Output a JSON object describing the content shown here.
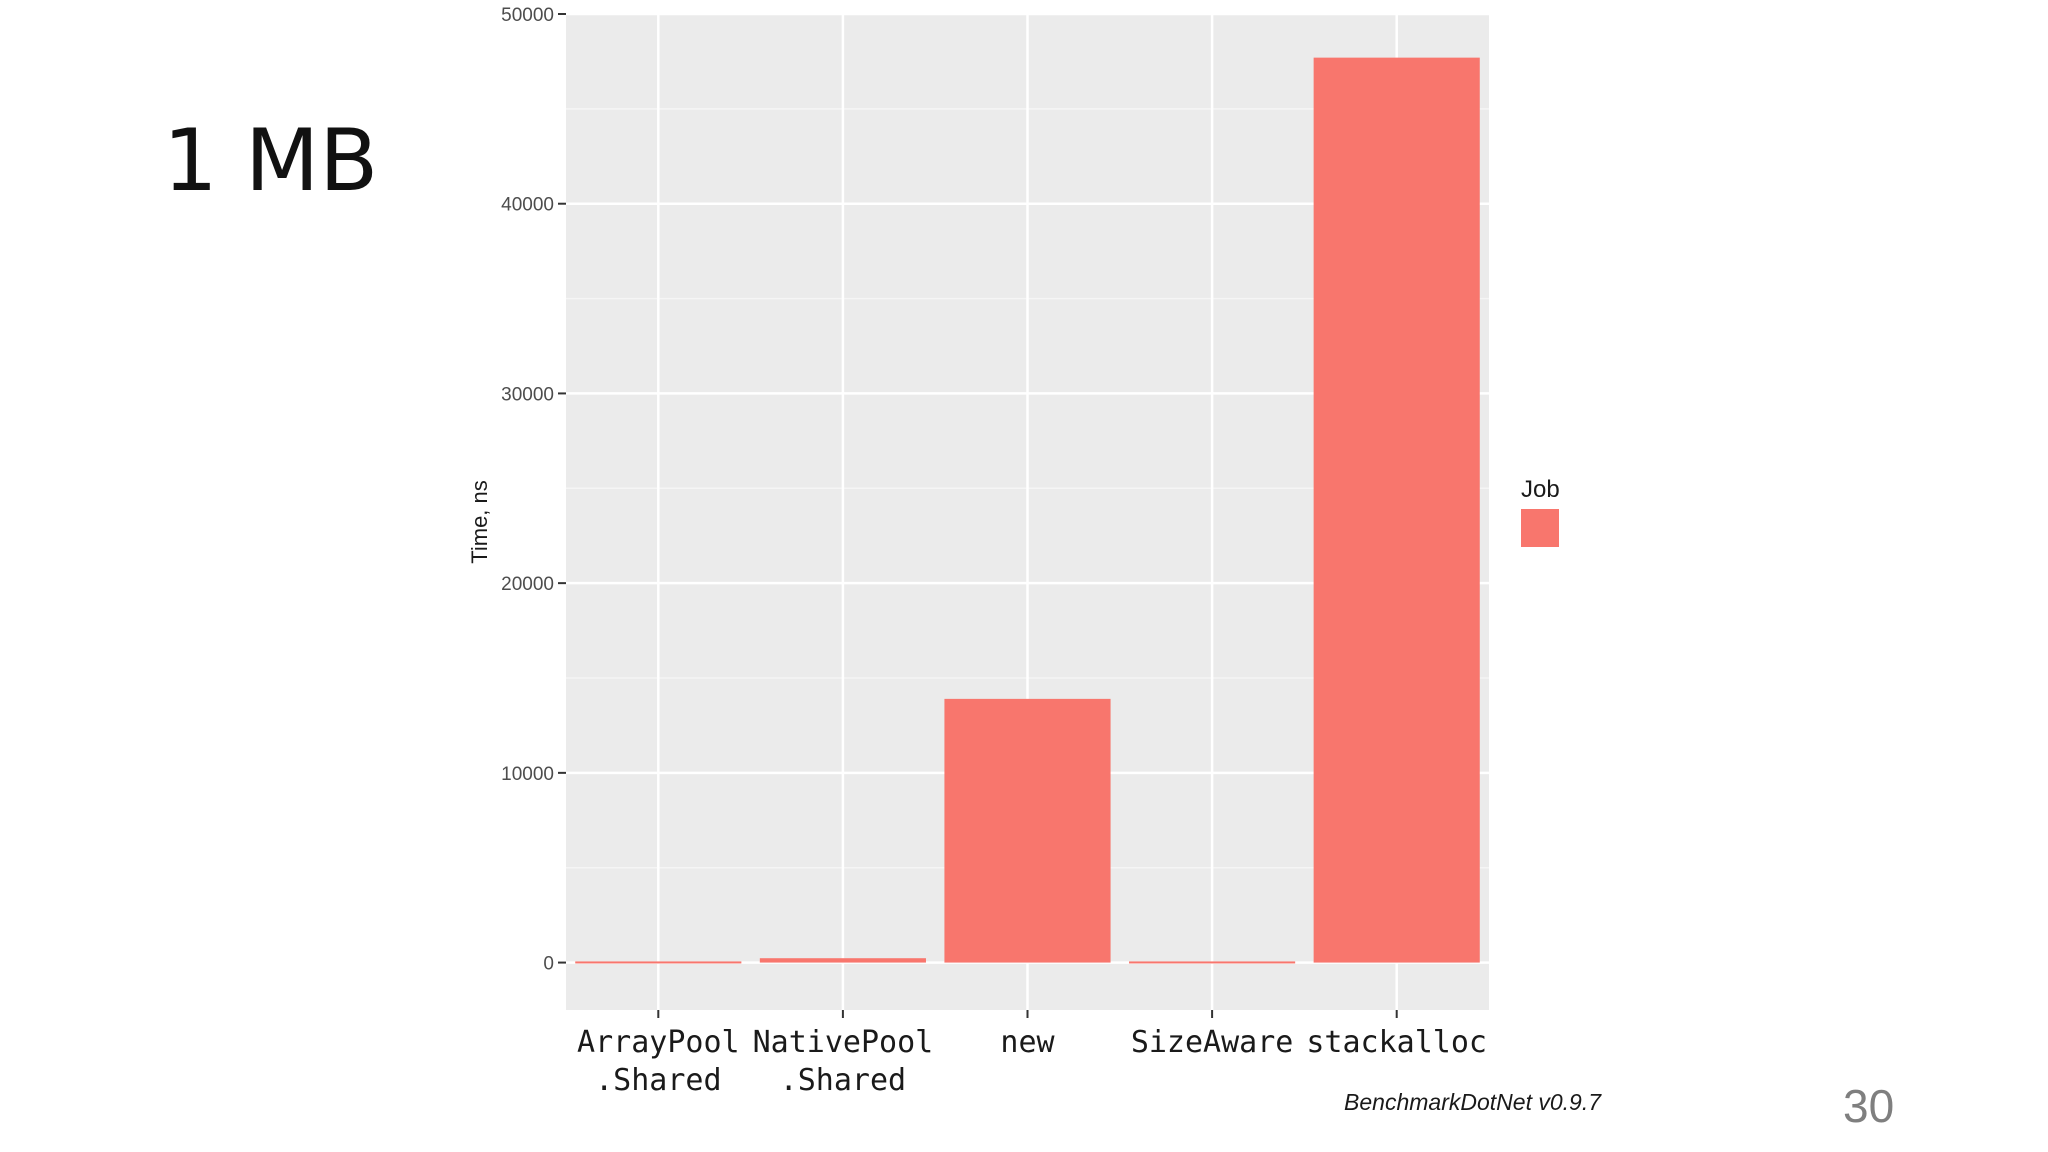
{
  "slide": {
    "title": "1 MB",
    "page_number": "30"
  },
  "chart_data": {
    "type": "bar",
    "categories": [
      [
        "ArrayPool",
        ".Shared"
      ],
      [
        "NativePool",
        ".Shared"
      ],
      [
        "new"
      ],
      [
        "SizeAware"
      ],
      [
        "stackalloc"
      ]
    ],
    "series": [
      {
        "values": [
          60,
          230,
          13900,
          60,
          47700
        ]
      }
    ],
    "ylabel": "Time, ns",
    "ylim": [
      -2500,
      50000
    ],
    "yticks": [
      0,
      10000,
      20000,
      30000,
      40000,
      50000
    ],
    "legend_title": "Job",
    "legend_position": "right",
    "grid": true,
    "caption": "BenchmarkDotNet v0.9.7",
    "colors": {
      "bar": "#f8766d",
      "panel": "#ebebeb",
      "grid_major": "#ffffff",
      "grid_minor": "#f5f5f5"
    }
  }
}
